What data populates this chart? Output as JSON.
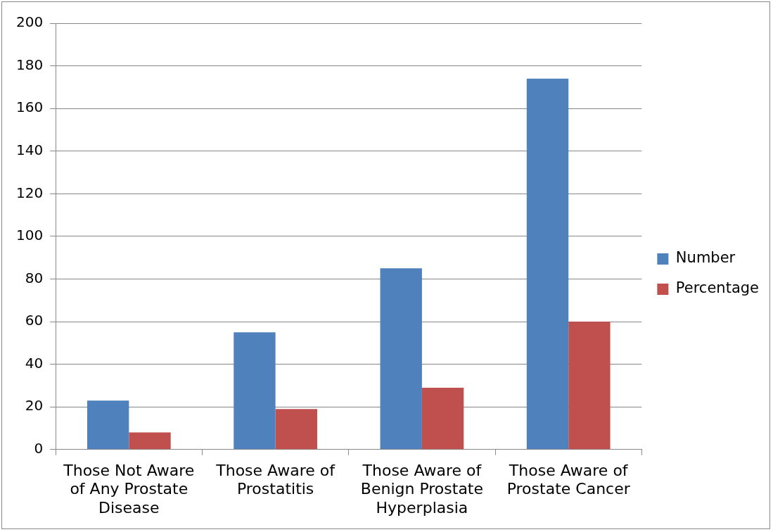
{
  "chart_data": {
    "type": "bar",
    "categories": [
      "Those Not Aware of Any Prostate Disease",
      "Those Aware of Prostatitis",
      "Those Aware of Benign Prostate Hyperplasia",
      "Those Aware of Prostate Cancer"
    ],
    "series": [
      {
        "name": "Number",
        "color": "#4f81bd",
        "values": [
          23,
          55,
          85,
          174
        ]
      },
      {
        "name": "Percentage",
        "color": "#c0504d",
        "values": [
          8,
          19,
          29,
          60
        ]
      }
    ],
    "ylim": [
      0,
      200
    ],
    "yticks": [
      0,
      20,
      40,
      60,
      80,
      100,
      120,
      140,
      160,
      180,
      200
    ],
    "grid": "y",
    "legend": "right"
  }
}
